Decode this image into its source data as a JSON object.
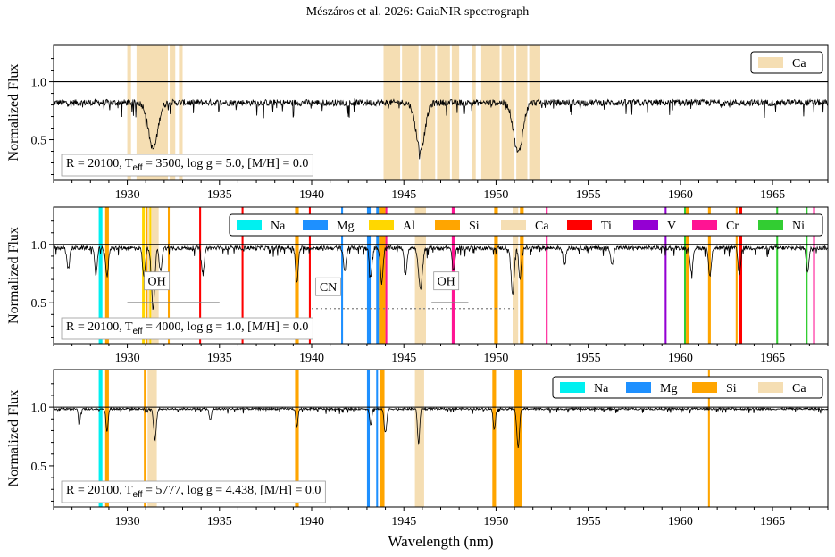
{
  "title": "Mészáros et al. 2026: GaiaNIR spectrograph",
  "xlabel": "Wavelength (nm)",
  "ylabel": "Normalized Flux",
  "colors": {
    "Na": "#00f0f0",
    "Mg": "#1e90ff",
    "Al": "#ffd700",
    "Si": "#ffa500",
    "Ca": "#f5deb3",
    "Ti": "#ff0000",
    "V": "#9400d3",
    "Cr": "#ff1493",
    "Ni": "#32cd32",
    "spectrum": "#000000",
    "oh": "#808080"
  },
  "chart_data": [
    {
      "type": "line",
      "xlim": [
        1926,
        1968
      ],
      "ylim": [
        0.15,
        1.32
      ],
      "xticks": [
        1930,
        1935,
        1940,
        1945,
        1950,
        1955,
        1960,
        1965
      ],
      "yticks": [
        0.5,
        1.0
      ],
      "xtick_labels": [
        "1930",
        "1935",
        "1940",
        "1945",
        "1950",
        "1955",
        "1960",
        "1965"
      ],
      "ytick_labels": [
        "0.5",
        "1.0"
      ],
      "reference_line": 1.0,
      "params_label": {
        "pre": "R = 20100, T",
        "sub": "eff",
        "post": " = 3500, log g = 5.0, [M/H] = 0.0"
      },
      "legend": [
        {
          "name": "Ca",
          "element": "Ca"
        }
      ],
      "legend_position": "top-right",
      "continuum": 0.82,
      "noise": 0.04,
      "lines": [
        {
          "x": 1931.4,
          "depth": 0.4,
          "w": 0.35
        },
        {
          "x": 1945.9,
          "depth": 0.4,
          "w": 0.35
        },
        {
          "x": 1951.2,
          "depth": 0.43,
          "w": 0.35
        }
      ],
      "bands": [
        {
          "element": "Ca",
          "x0": 1930.0,
          "x1": 1930.2
        },
        {
          "element": "Ca",
          "x0": 1930.5,
          "x1": 1932.2
        },
        {
          "element": "Ca",
          "x0": 1932.3,
          "x1": 1932.6
        },
        {
          "element": "Ca",
          "x0": 1932.8,
          "x1": 1933.0
        },
        {
          "element": "Ca",
          "x0": 1943.9,
          "x1": 1944.8
        },
        {
          "element": "Ca",
          "x0": 1944.9,
          "x1": 1945.8
        },
        {
          "element": "Ca",
          "x0": 1945.9,
          "x1": 1946.7
        },
        {
          "element": "Ca",
          "x0": 1946.8,
          "x1": 1947.5
        },
        {
          "element": "Ca",
          "x0": 1947.6,
          "x1": 1948.0
        },
        {
          "element": "Ca",
          "x0": 1948.7,
          "x1": 1948.9
        },
        {
          "element": "Ca",
          "x0": 1949.2,
          "x1": 1950.2
        },
        {
          "element": "Ca",
          "x0": 1950.3,
          "x1": 1951.0
        },
        {
          "element": "Ca",
          "x0": 1951.1,
          "x1": 1951.7
        },
        {
          "element": "Ca",
          "x0": 1951.8,
          "x1": 1952.4
        }
      ]
    },
    {
      "type": "line",
      "xlim": [
        1926,
        1968
      ],
      "ylim": [
        0.15,
        1.32
      ],
      "xticks": [
        1930,
        1935,
        1940,
        1945,
        1950,
        1955,
        1960,
        1965
      ],
      "yticks": [
        0.5,
        1.0
      ],
      "xtick_labels": [
        "1930",
        "1935",
        "1940",
        "1945",
        "1950",
        "1955",
        "1960",
        "1965"
      ],
      "ytick_labels": [
        "0.5",
        "1.0"
      ],
      "reference_line": 1.0,
      "params_label": {
        "pre": "R = 20100, T",
        "sub": "eff",
        "post": " = 4000, log g = 1.0, [M/H] = 0.0"
      },
      "legend": [
        {
          "name": "Na",
          "element": "Na"
        },
        {
          "name": "Mg",
          "element": "Mg"
        },
        {
          "name": "Al",
          "element": "Al"
        },
        {
          "name": "Si",
          "element": "Si"
        },
        {
          "name": "Ca",
          "element": "Ca"
        },
        {
          "name": "Ti",
          "element": "Ti"
        },
        {
          "name": "V",
          "element": "V"
        },
        {
          "name": "Cr",
          "element": "Cr"
        },
        {
          "name": "Ni",
          "element": "Ni"
        }
      ],
      "legend_position": "top-right",
      "continuum": 0.97,
      "noise": 0.025,
      "lines": [
        {
          "x": 1926.8,
          "depth": 0.18,
          "w": 0.1
        },
        {
          "x": 1928.3,
          "depth": 0.22,
          "w": 0.1
        },
        {
          "x": 1928.9,
          "depth": 0.25,
          "w": 0.1
        },
        {
          "x": 1930.9,
          "depth": 0.25,
          "w": 0.1
        },
        {
          "x": 1931.4,
          "depth": 0.53,
          "w": 0.12
        },
        {
          "x": 1931.8,
          "depth": 0.2,
          "w": 0.1
        },
        {
          "x": 1934.1,
          "depth": 0.22,
          "w": 0.1
        },
        {
          "x": 1939.2,
          "depth": 0.3,
          "w": 0.1
        },
        {
          "x": 1941.8,
          "depth": 0.2,
          "w": 0.1
        },
        {
          "x": 1943.2,
          "depth": 0.25,
          "w": 0.1
        },
        {
          "x": 1943.8,
          "depth": 0.3,
          "w": 0.1
        },
        {
          "x": 1945.1,
          "depth": 0.22,
          "w": 0.1
        },
        {
          "x": 1945.9,
          "depth": 0.35,
          "w": 0.15
        },
        {
          "x": 1947.7,
          "depth": 0.2,
          "w": 0.1
        },
        {
          "x": 1950.9,
          "depth": 0.4,
          "w": 0.12
        },
        {
          "x": 1951.3,
          "depth": 0.25,
          "w": 0.1
        },
        {
          "x": 1953.7,
          "depth": 0.15,
          "w": 0.1
        },
        {
          "x": 1956.3,
          "depth": 0.15,
          "w": 0.1
        },
        {
          "x": 1960.6,
          "depth": 0.22,
          "w": 0.1
        },
        {
          "x": 1961.6,
          "depth": 0.25,
          "w": 0.1
        },
        {
          "x": 1963.2,
          "depth": 0.22,
          "w": 0.1
        },
        {
          "x": 1966.9,
          "depth": 0.2,
          "w": 0.1
        }
      ],
      "bands": [
        {
          "element": "Na",
          "x0": 1928.45,
          "x1": 1928.65
        },
        {
          "element": "Si",
          "x0": 1928.8,
          "x1": 1929.0
        },
        {
          "element": "Al",
          "x0": 1930.8,
          "x1": 1930.95
        },
        {
          "element": "Si",
          "x0": 1931.0,
          "x1": 1931.1
        },
        {
          "element": "Ca",
          "x0": 1931.1,
          "x1": 1931.2
        },
        {
          "element": "Al",
          "x0": 1931.2,
          "x1": 1931.3
        },
        {
          "element": "Ca",
          "x0": 1931.3,
          "x1": 1931.7
        },
        {
          "element": "Si",
          "x0": 1932.2,
          "x1": 1932.3
        },
        {
          "element": "Ti",
          "x0": 1933.9,
          "x1": 1934.0
        },
        {
          "element": "Ti",
          "x0": 1936.2,
          "x1": 1936.3
        },
        {
          "element": "Si",
          "x0": 1939.1,
          "x1": 1939.3
        },
        {
          "element": "Ti",
          "x0": 1939.85,
          "x1": 1939.95
        },
        {
          "element": "Mg",
          "x0": 1941.6,
          "x1": 1941.7
        },
        {
          "element": "Mg",
          "x0": 1943.0,
          "x1": 1943.2
        },
        {
          "element": "Mg",
          "x0": 1943.5,
          "x1": 1943.65
        },
        {
          "element": "Si",
          "x0": 1943.65,
          "x1": 1944.0
        },
        {
          "element": "Cr",
          "x0": 1944.0,
          "x1": 1944.1
        },
        {
          "element": "Ca",
          "x0": 1945.6,
          "x1": 1946.2
        },
        {
          "element": "Cr",
          "x0": 1947.6,
          "x1": 1947.75
        },
        {
          "element": "Si",
          "x0": 1949.9,
          "x1": 1950.1
        },
        {
          "element": "Ca",
          "x0": 1950.9,
          "x1": 1951.2
        },
        {
          "element": "Si",
          "x0": 1951.3,
          "x1": 1951.5
        },
        {
          "element": "Cr",
          "x0": 1952.7,
          "x1": 1952.8
        },
        {
          "element": "V",
          "x0": 1959.15,
          "x1": 1959.25
        },
        {
          "element": "Ni",
          "x0": 1960.2,
          "x1": 1960.3
        },
        {
          "element": "Si",
          "x0": 1960.3,
          "x1": 1960.45
        },
        {
          "element": "Si",
          "x0": 1961.5,
          "x1": 1961.65
        },
        {
          "element": "Si",
          "x0": 1963.0,
          "x1": 1963.1
        },
        {
          "element": "Ti",
          "x0": 1963.2,
          "x1": 1963.35
        },
        {
          "element": "Ni",
          "x0": 1965.2,
          "x1": 1965.3
        },
        {
          "element": "Ni",
          "x0": 1966.8,
          "x1": 1966.9
        },
        {
          "element": "Cr",
          "x0": 1967.2,
          "x1": 1967.3
        }
      ],
      "annotations": [
        {
          "text": "OH",
          "x": 1931.6,
          "y": 0.68,
          "line": {
            "x0": 1930.0,
            "x1": 1935.0,
            "y": 0.5,
            "style": "solid"
          }
        },
        {
          "text": "CN",
          "x": 1940.9,
          "y": 0.63,
          "line": {
            "x0": 1940.0,
            "x1": 1951.0,
            "y": 0.45,
            "style": "dotted"
          }
        },
        {
          "text": "OH",
          "x": 1947.3,
          "y": 0.68,
          "line": {
            "x0": 1946.5,
            "x1": 1948.5,
            "y": 0.5,
            "style": "solid"
          }
        }
      ]
    },
    {
      "type": "line",
      "xlim": [
        1926,
        1968
      ],
      "ylim": [
        0.15,
        1.32
      ],
      "xticks": [
        1930,
        1935,
        1940,
        1945,
        1950,
        1955,
        1960,
        1965
      ],
      "yticks": [
        0.5,
        1.0
      ],
      "xtick_labels": [
        "1930",
        "1935",
        "1940",
        "1945",
        "1950",
        "1955",
        "1960",
        "1965"
      ],
      "ytick_labels": [
        "0.5",
        "1.0"
      ],
      "reference_line": 1.0,
      "params_label": {
        "pre": "R = 20100, T",
        "sub": "eff",
        "post": " = 5777, log g = 4.438, [M/H] = 0.0"
      },
      "legend": [
        {
          "name": "Na",
          "element": "Na"
        },
        {
          "name": "Mg",
          "element": "Mg"
        },
        {
          "name": "Si",
          "element": "Si"
        },
        {
          "name": "Ca",
          "element": "Ca"
        }
      ],
      "legend_position": "top-right",
      "continuum": 0.985,
      "noise": 0.012,
      "lines": [
        {
          "x": 1927.4,
          "depth": 0.12,
          "w": 0.08
        },
        {
          "x": 1928.9,
          "depth": 0.2,
          "w": 0.08
        },
        {
          "x": 1931.5,
          "depth": 0.26,
          "w": 0.1
        },
        {
          "x": 1934.5,
          "depth": 0.1,
          "w": 0.08
        },
        {
          "x": 1939.2,
          "depth": 0.15,
          "w": 0.08
        },
        {
          "x": 1943.2,
          "depth": 0.14,
          "w": 0.08
        },
        {
          "x": 1944.0,
          "depth": 0.2,
          "w": 0.1
        },
        {
          "x": 1945.8,
          "depth": 0.3,
          "w": 0.08
        },
        {
          "x": 1949.9,
          "depth": 0.18,
          "w": 0.08
        },
        {
          "x": 1951.2,
          "depth": 0.33,
          "w": 0.1
        }
      ],
      "bands": [
        {
          "element": "Na",
          "x0": 1928.45,
          "x1": 1928.65
        },
        {
          "element": "Si",
          "x0": 1928.8,
          "x1": 1929.0
        },
        {
          "element": "Si",
          "x0": 1930.9,
          "x1": 1931.0
        },
        {
          "element": "Ca",
          "x0": 1931.1,
          "x1": 1931.6
        },
        {
          "element": "Si",
          "x0": 1939.1,
          "x1": 1939.3
        },
        {
          "element": "Mg",
          "x0": 1943.0,
          "x1": 1943.15
        },
        {
          "element": "Mg",
          "x0": 1943.5,
          "x1": 1943.6
        },
        {
          "element": "Si",
          "x0": 1943.7,
          "x1": 1943.95
        },
        {
          "element": "Ca",
          "x0": 1945.6,
          "x1": 1946.1
        },
        {
          "element": "Si",
          "x0": 1949.8,
          "x1": 1950.0
        },
        {
          "element": "Si",
          "x0": 1951.0,
          "x1": 1951.4
        },
        {
          "element": "Si",
          "x0": 1961.5,
          "x1": 1961.6
        }
      ]
    }
  ]
}
